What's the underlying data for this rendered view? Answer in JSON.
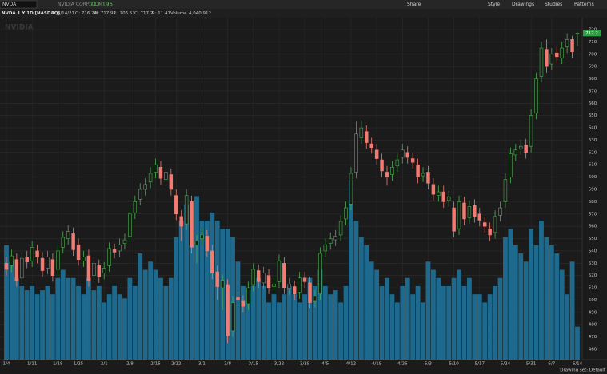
{
  "header": {
    "symbol": "NVDA",
    "company": "NVIDIA CORP. COM",
    "last": "717.195",
    "date": "D: 6/14/21",
    "open": "O: 716.24",
    "high": "H: 717.92",
    "low": "L: 706.51",
    "close": "C: 717.2",
    "range": "R: 11.41",
    "volume_label": "Volume",
    "volume": "4,040,912"
  },
  "toolbar": [
    "Share",
    "Style",
    "Drawings",
    "Studies",
    "Patterns"
  ],
  "footer": "Drawing set: Default",
  "chart_data": {
    "type": "candlestick",
    "title": "NVDA 1 Y 1D [NASDAQ]",
    "watermark": "NVIDIA",
    "categories": [
      "1/4",
      null,
      null,
      null,
      null,
      "1/11",
      null,
      null,
      null,
      null,
      "1/18",
      null,
      null,
      null,
      "1/25",
      null,
      null,
      null,
      null,
      "2/1",
      null,
      null,
      null,
      null,
      "2/8",
      null,
      null,
      null,
      null,
      "2/15",
      null,
      null,
      null,
      "2/22",
      null,
      null,
      null,
      null,
      "3/1",
      null,
      null,
      null,
      null,
      "3/8",
      null,
      null,
      null,
      null,
      "3/15",
      null,
      null,
      null,
      null,
      "3/22",
      null,
      null,
      null,
      null,
      "3/29",
      null,
      null,
      null,
      "4/5",
      null,
      null,
      null,
      null,
      "4/12",
      null,
      null,
      null,
      null,
      "4/19",
      null,
      null,
      null,
      null,
      "4/26",
      null,
      null,
      null,
      null,
      "5/3",
      null,
      null,
      null,
      null,
      "5/10",
      null,
      null,
      null,
      null,
      "5/17",
      null,
      null,
      null,
      null,
      "5/24",
      null,
      null,
      null,
      null,
      "5/31",
      null,
      null,
      null,
      "6/7",
      null,
      null,
      null,
      null,
      "6/14"
    ],
    "open": [
      530,
      528,
      533,
      518,
      535,
      532,
      540,
      534,
      526,
      533,
      525,
      543,
      550,
      554,
      545,
      532,
      536,
      520,
      528,
      522,
      528,
      541,
      540,
      546,
      552,
      571,
      582,
      590,
      596,
      604,
      608,
      598,
      602,
      585,
      568,
      562,
      580,
      545,
      550,
      552,
      540,
      523,
      510,
      512,
      475,
      502,
      499,
      497,
      512,
      524,
      514,
      520,
      511,
      515,
      530,
      509,
      511,
      506,
      518,
      514,
      499,
      505,
      540,
      546,
      549,
      553,
      566,
      578,
      604,
      632,
      637,
      627,
      622,
      614,
      604,
      602,
      609,
      616,
      620,
      615,
      610,
      601,
      604,
      594,
      585,
      588,
      581,
      575,
      558,
      579,
      567,
      577,
      570,
      563,
      558,
      555,
      569,
      580,
      600,
      618,
      623,
      626,
      625,
      652,
      682,
      704,
      692,
      701,
      697,
      706,
      712,
      716.24
    ],
    "high": [
      535,
      541,
      538,
      539,
      540,
      548,
      545,
      539,
      540,
      538,
      545,
      556,
      561,
      559,
      550,
      540,
      541,
      535,
      533,
      531,
      547,
      546,
      550,
      554,
      575,
      585,
      595,
      599,
      608,
      615,
      613,
      609,
      607,
      590,
      573,
      590,
      585,
      553,
      558,
      557,
      545,
      528,
      521,
      517,
      503,
      507,
      504,
      515,
      530,
      529,
      527,
      525,
      518,
      537,
      535,
      518,
      516,
      523,
      523,
      519,
      508,
      543,
      550,
      555,
      557,
      569,
      580,
      608,
      645,
      646,
      642,
      632,
      627,
      619,
      609,
      613,
      619,
      627,
      625,
      620,
      615,
      608,
      609,
      599,
      593,
      593,
      589,
      580,
      585,
      584,
      581,
      582,
      575,
      568,
      563,
      573,
      580,
      603,
      624,
      627,
      630,
      631,
      655,
      685,
      710,
      712,
      705,
      706,
      710,
      717,
      715,
      717.92
    ],
    "low": [
      520,
      523,
      511,
      513,
      526,
      527,
      530,
      519,
      521,
      515,
      520,
      538,
      545,
      536,
      528,
      527,
      511,
      515,
      514,
      517,
      523,
      534,
      535,
      541,
      547,
      566,
      577,
      585,
      591,
      599,
      594,
      593,
      585,
      565,
      548,
      557,
      538,
      530,
      545,
      535,
      517,
      500,
      492,
      465,
      470,
      495,
      490,
      492,
      507,
      510,
      509,
      505,
      506,
      510,
      505,
      504,
      500,
      501,
      510,
      493,
      494,
      500,
      535,
      541,
      544,
      548,
      561,
      573,
      599,
      627,
      623,
      619,
      610,
      600,
      593,
      597,
      604,
      611,
      611,
      607,
      595,
      596,
      590,
      581,
      580,
      575,
      576,
      551,
      553,
      561,
      562,
      563,
      560,
      555,
      548,
      550,
      564,
      575,
      595,
      613,
      618,
      615,
      620,
      647,
      677,
      685,
      687,
      693,
      692,
      701,
      697,
      706.51
    ],
    "close": [
      525,
      536,
      516,
      534,
      531,
      543,
      535,
      524,
      535,
      520,
      540,
      551,
      556,
      541,
      533,
      535,
      516,
      530,
      519,
      526,
      542,
      539,
      545,
      549,
      570,
      580,
      590,
      594,
      603,
      610,
      599,
      604,
      590,
      570,
      560,
      585,
      543,
      548,
      553,
      540,
      522,
      511,
      516,
      471,
      498,
      500,
      495,
      510,
      525,
      515,
      522,
      510,
      513,
      532,
      510,
      513,
      505,
      518,
      515,
      498,
      503,
      538,
      545,
      550,
      552,
      564,
      575,
      603,
      635,
      640,
      628,
      624,
      615,
      605,
      600,
      608,
      614,
      622,
      616,
      612,
      600,
      603,
      595,
      586,
      588,
      580,
      584,
      556,
      580,
      566,
      576,
      568,
      565,
      560,
      553,
      568,
      575,
      598,
      619,
      622,
      625,
      620,
      650,
      680,
      705,
      690,
      700,
      698,
      705,
      712,
      702,
      717.2
    ],
    "volume": [
      14000000,
      12000000,
      10000000,
      9000000,
      8500000,
      9000000,
      8000000,
      8500000,
      9000000,
      8000000,
      10000000,
      11000000,
      10000000,
      10000000,
      9000000,
      8000000,
      10000000,
      8500000,
      9000000,
      7000000,
      8000000,
      9000000,
      8000000,
      7500000,
      10000000,
      9000000,
      13000000,
      11000000,
      12000000,
      11000000,
      10000000,
      9000000,
      10000000,
      15000000,
      17000000,
      19000000,
      14000000,
      20000000,
      17000000,
      17000000,
      18000000,
      17000000,
      16000000,
      16000000,
      15000000,
      12000000,
      9000000,
      8500000,
      9000000,
      10000000,
      9000000,
      7000000,
      8000000,
      7000000,
      8000000,
      9000000,
      8000000,
      7000000,
      8000000,
      10000000,
      9000000,
      11000000,
      9000000,
      8000000,
      8500000,
      7000000,
      9000000,
      22000000,
      17000000,
      15000000,
      14000000,
      12000000,
      11000000,
      9000000,
      10000000,
      8000000,
      7000000,
      9000000,
      10000000,
      8000000,
      9000000,
      7000000,
      12000000,
      11000000,
      10000000,
      9000000,
      9000000,
      10000000,
      11000000,
      9000000,
      10000000,
      8000000,
      8000000,
      7000000,
      8000000,
      9000000,
      10000000,
      15000000,
      16000000,
      14000000,
      13000000,
      12000000,
      16000000,
      14000000,
      17000000,
      15000000,
      14000000,
      13000000,
      11000000,
      8000000,
      12000000,
      4040912
    ],
    "ylim": [
      460,
      720
    ],
    "yticks": [
      460,
      470,
      480,
      490,
      500,
      510,
      520,
      530,
      540,
      550,
      560,
      570,
      580,
      590,
      600,
      610,
      620,
      630,
      640,
      650,
      660,
      670,
      680,
      690,
      700,
      710,
      720
    ],
    "vlim": [
      0,
      22000000
    ],
    "last_price": {
      "value": 717.2,
      "label": "717.2"
    },
    "up_color": "#4caf50",
    "down_color": "#f07c74",
    "volume_color": "#1d6a8e",
    "grid": true
  }
}
